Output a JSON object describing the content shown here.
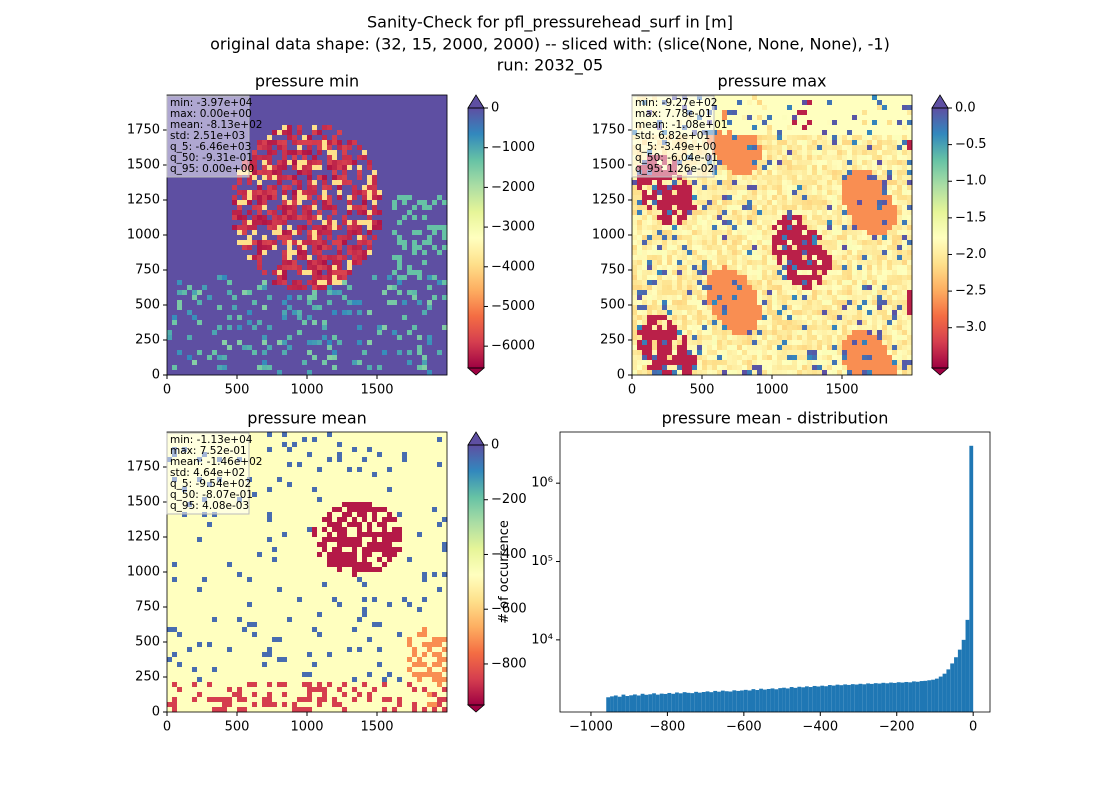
{
  "suptitle": [
    "Sanity-Check for pfl_pressurehead_surf in [m]",
    "original data shape: (32, 15, 2000, 2000) -- sliced with: (slice(None, None, None), -1)",
    "run: 2032_05"
  ],
  "chart_data": [
    {
      "type": "heatmap",
      "title": "pressure min",
      "colormap": "Spectral",
      "xlim": [
        0,
        2000
      ],
      "xticks": [
        0,
        500,
        1000,
        1500
      ],
      "ylim": [
        0,
        2000
      ],
      "yticks": [
        0,
        250,
        500,
        750,
        1000,
        1250,
        1500,
        1750
      ],
      "clim": [
        -6550,
        0
      ],
      "cticks": [
        0,
        {
          "value": -1000,
          "label": "−1000"
        },
        {
          "value": -2000,
          "label": "−2000"
        },
        {
          "value": -3000,
          "label": "−3000"
        },
        {
          "value": -4000,
          "label": "−4000"
        },
        {
          "value": -5000,
          "label": "−5000"
        },
        {
          "value": -6000,
          "label": "−6000"
        }
      ],
      "colorbar_extend": "both",
      "stats": [
        "min: -3.97e+04",
        "max: 0.00e+00",
        "mean: -8.13e+02",
        "std: 2.51e+03",
        "q_5: -6.46e+03",
        "q_50: -9.31e-01",
        "q_95: 0.00e+00"
      ]
    },
    {
      "type": "heatmap",
      "title": "pressure max",
      "colormap": "Spectral",
      "xlim": [
        0,
        2000
      ],
      "xticks": [
        0,
        500,
        1000,
        1500
      ],
      "ylim": [
        0,
        2000
      ],
      "yticks": [
        0,
        250,
        500,
        750,
        1000,
        1250,
        1500,
        1750
      ],
      "clim": [
        -3.55,
        0
      ],
      "cticks": [
        {
          "value": 0,
          "label": "0.0"
        },
        {
          "value": -0.5,
          "label": "−0.5"
        },
        {
          "value": -1,
          "label": "−1.0"
        },
        {
          "value": -1.5,
          "label": "−1.5"
        },
        {
          "value": -2,
          "label": "−2.0"
        },
        {
          "value": -2.5,
          "label": "−2.5"
        },
        {
          "value": -3,
          "label": "−3.0"
        }
      ],
      "colorbar_extend": "both",
      "stats": [
        "min: -9.27e+02",
        "max: 7.78e-01",
        "mean: -1.08e+01",
        "std: 6.82e+01",
        "q_5: -3.49e+00",
        "q_50: -6.04e-01",
        "q_95: 1.26e-02"
      ]
    },
    {
      "type": "heatmap",
      "title": "pressure mean",
      "colormap": "Spectral",
      "xlim": [
        0,
        2000
      ],
      "xticks": [
        0,
        500,
        1000,
        1500
      ],
      "ylim": [
        0,
        2000
      ],
      "yticks": [
        0,
        250,
        500,
        750,
        1000,
        1250,
        1500,
        1750
      ],
      "clim": [
        -950,
        0
      ],
      "cticks": [
        0,
        {
          "value": -200,
          "label": "−200"
        },
        {
          "value": -400,
          "label": "−400"
        },
        {
          "value": -600,
          "label": "−600"
        },
        {
          "value": -800,
          "label": "−800"
        }
      ],
      "colorbar_extend": "both",
      "stats": [
        "min: -1.13e+04",
        "max: 7.52e-01",
        "mean: -1.46e+02",
        "std: 4.64e+02",
        "q_5: -9.54e+02",
        "q_50: -8.07e-01",
        "q_95: 4.08e-03"
      ]
    },
    {
      "type": "histogram",
      "title": "pressure mean - distribution",
      "ylabel": "# of occurrence",
      "color": "#1f77b4",
      "ylog": true,
      "xlim": [
        -1081,
        44
      ],
      "xticks": [
        {
          "value": -1000,
          "label": "−1000"
        },
        {
          "value": -800,
          "label": "−800"
        },
        {
          "value": -600,
          "label": "−600"
        },
        {
          "value": -400,
          "label": "−400"
        },
        {
          "value": -200,
          "label": "−200"
        },
        0
      ],
      "ylim": [
        1200,
        4500000
      ],
      "yticks": [
        {
          "value": 10000,
          "label": "10⁴"
        },
        {
          "value": 100000,
          "label": "10⁵"
        },
        {
          "value": 1000000,
          "label": "10⁶"
        }
      ],
      "bins": [
        -960,
        -950,
        -940,
        -930,
        -920,
        -910,
        -900,
        -890,
        -880,
        -870,
        -860,
        -850,
        -840,
        -830,
        -820,
        -810,
        -800,
        -790,
        -780,
        -770,
        -760,
        -750,
        -740,
        -730,
        -720,
        -710,
        -700,
        -690,
        -680,
        -670,
        -660,
        -650,
        -640,
        -630,
        -620,
        -610,
        -600,
        -590,
        -580,
        -570,
        -560,
        -550,
        -540,
        -530,
        -520,
        -510,
        -500,
        -490,
        -480,
        -470,
        -460,
        -450,
        -440,
        -430,
        -420,
        -410,
        -400,
        -390,
        -380,
        -370,
        -360,
        -350,
        -340,
        -330,
        -320,
        -310,
        -300,
        -290,
        -280,
        -270,
        -260,
        -250,
        -240,
        -230,
        -220,
        -210,
        -200,
        -190,
        -180,
        -170,
        -160,
        -150,
        -140,
        -130,
        -120,
        -110,
        -100,
        -90,
        -80,
        -70,
        -60,
        -50,
        -40,
        -30,
        -20,
        -10,
        0
      ],
      "counts": [
        1850,
        1900,
        1950,
        1880,
        2000,
        1920,
        1960,
        2010,
        1950,
        2050,
        1990,
        2020,
        2080,
        2000,
        2060,
        2040,
        2100,
        2050,
        2130,
        2080,
        2150,
        2110,
        2090,
        2170,
        2120,
        2160,
        2200,
        2150,
        2230,
        2180,
        2250,
        2210,
        2190,
        2270,
        2230,
        2260,
        2300,
        2260,
        2350,
        2290,
        2380,
        2320,
        2360,
        2400,
        2340,
        2420,
        2450,
        2400,
        2500,
        2440,
        2520,
        2480,
        2550,
        2500,
        2580,
        2540,
        2600,
        2560,
        2650,
        2610,
        2680,
        2640,
        2700,
        2660,
        2720,
        2690,
        2750,
        2710,
        2780,
        2740,
        2800,
        2770,
        2830,
        2790,
        2850,
        2820,
        2880,
        2850,
        2900,
        2870,
        2950,
        2920,
        2980,
        3000,
        3050,
        3100,
        3200,
        3400,
        3700,
        4200,
        5000,
        6000,
        7500,
        10000,
        18000,
        3000000
      ]
    }
  ]
}
